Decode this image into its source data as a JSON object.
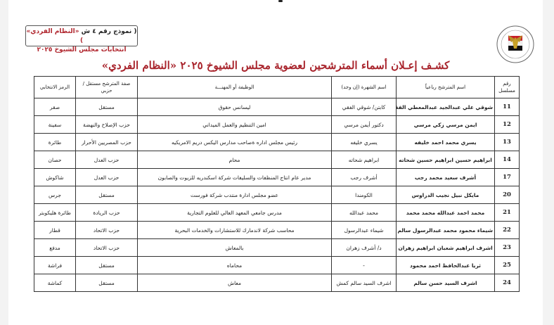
{
  "header": {
    "model_line1_a": "( نموذج رقم ٤ ش ",
    "model_line1_b": "«النظام الفردي» )",
    "model_line2": "انتخابات مجلس الشيوخ ٢٠٢٥",
    "logo": "egypt-eagle-emblem",
    "title": "كشـف إعـلان أسماء المترشحين لعضوية مجلس الشيوخ ٢٠٢٥ «النظام الفردي»"
  },
  "colors": {
    "title": "#a8232b",
    "border": "#333333"
  },
  "table": {
    "columns": [
      "رقم مسلسل",
      "اسم المترشح رباعياً",
      "اسم الشهرة (إن وجد)",
      "الوظيفة أو المهنـــة",
      "صفة المترشح مستقل / حزبي",
      "الرمز الانتخابي"
    ],
    "rows": [
      [
        "11",
        "شوقي علي عبدالجيد عبدالمعطي الفقي",
        "كابتن/ شوقي الفقي",
        "ليسانس حقوق",
        "مستقل",
        "صقر"
      ],
      [
        "12",
        "ايمن مرسي زكي مرسي",
        "دكتور أيمن مرسي",
        "امين التنظيم والعمل الميداني",
        "حزب الإصلاح والنهضة",
        "سفينة"
      ],
      [
        "13",
        "يسري محمد احمد خليفه",
        "يسري خليفه",
        "رئيس مجلس اداره ةصاحب مدارس اليكس دريم الامريكيه",
        "حزب المصريين الأحرار",
        "طائرة"
      ],
      [
        "14",
        "ابراهيم حسين ابراهيم حسين شحاته",
        "ابراهيم شحاته",
        "محام",
        "حزب العدل",
        "حصان"
      ],
      [
        "17",
        "أشرف سعيد محمد رجب",
        "أشرف رجب",
        "مدير عام انتاج المنظفات والسليفات شركة اسكندريه للزيوت والصابون",
        "حزب العدل",
        "شاكوش"
      ],
      [
        "20",
        "مايكل نبيل نجيب الدراوس",
        "الكومندا",
        "عضو مجلس ادارة منتدب شركة فورست",
        "مستقل",
        "جرس"
      ],
      [
        "21",
        "محمد احمد عبدالله محمد محمد",
        "محمد عبدالله",
        "مدرس جامعي المعهد العالي للعلوم التجارية",
        "حزب الريادة",
        "طائرة هليكوبتر"
      ],
      [
        "22",
        "شيماء محمود محمد عبدالرسول سالم",
        "شيماء عبدالرسول",
        "محاسب شركة لاندمارك للاستشارات والخدمات البحرية",
        "حزب الاتحاد",
        "قطار"
      ],
      [
        "23",
        "اشرف ابراهيم شعبان ابراهيم زهران",
        "د/ أشرف زهران",
        "بالمعاش",
        "حزب الاتحاد",
        "مدفع"
      ],
      [
        "25",
        "ثريا عبدالحافظ احمد محمود",
        "-",
        "محاماه",
        "مستقل",
        "فراشة"
      ],
      [
        "24",
        "اشرف السيد حسن سالم",
        "اشرف السيد سالم كمش",
        "معاش",
        "مستقل",
        "كماشة"
      ]
    ]
  }
}
